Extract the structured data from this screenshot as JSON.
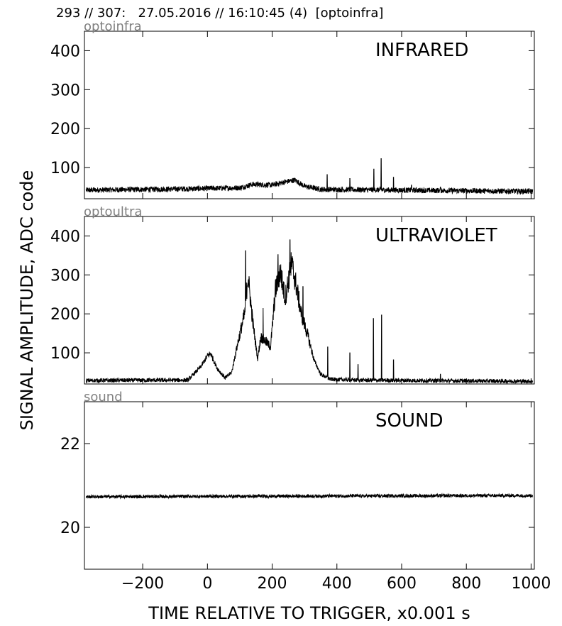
{
  "header": "293 // 307:   27.05.2016 // 16:10:45 (4)  [optoinfra]",
  "chart_data": {
    "type": "line",
    "ylabel": "SIGNAL AMPLITUDE,  ADC code",
    "xlabel": "TIME RELATIVE TO TRIGGER,   x0.001 s",
    "xlim": [
      -380,
      1010
    ],
    "x_ticks": [
      -200,
      0,
      200,
      400,
      600,
      800,
      1000
    ],
    "x_tick_labels": [
      "−200",
      "0",
      "200",
      "400",
      "600",
      "800",
      "1000"
    ],
    "panels": [
      {
        "source_label": "optoinfra",
        "title": "INFRARED",
        "ylim": [
          20,
          450
        ],
        "y_ticks": [
          100,
          200,
          300,
          400
        ],
        "y_tick_labels": [
          "100",
          "200",
          "300",
          "400"
        ],
        "baseline": [
          [
            -380,
            42
          ],
          [
            -100,
            45
          ],
          [
            100,
            48
          ],
          [
            140,
            57
          ],
          [
            200,
            55
          ],
          [
            240,
            63
          ],
          [
            270,
            68
          ],
          [
            300,
            52
          ],
          [
            350,
            44
          ],
          [
            600,
            42
          ],
          [
            1000,
            39
          ]
        ],
        "noise": 7,
        "spikes": [
          [
            370,
            82
          ],
          [
            440,
            72
          ],
          [
            514,
            96
          ],
          [
            537,
            123
          ],
          [
            575,
            75
          ],
          [
            630,
            55
          ],
          [
            720,
            50
          ]
        ]
      },
      {
        "source_label": "optoultra",
        "title": "ULTRAVIOLET",
        "ylim": [
          20,
          450
        ],
        "y_ticks": [
          100,
          200,
          300,
          400
        ],
        "y_tick_labels": [
          "100",
          "200",
          "300",
          "400"
        ],
        "baseline": [
          [
            -380,
            29
          ],
          [
            -60,
            30
          ],
          [
            -20,
            65
          ],
          [
            0,
            92
          ],
          [
            10,
            98
          ],
          [
            30,
            60
          ],
          [
            55,
            35
          ],
          [
            75,
            50
          ],
          [
            95,
            130
          ],
          [
            115,
            200
          ],
          [
            125,
            300
          ],
          [
            140,
            180
          ],
          [
            155,
            85
          ],
          [
            165,
            140
          ],
          [
            180,
            130
          ],
          [
            195,
            115
          ],
          [
            210,
            260
          ],
          [
            225,
            310
          ],
          [
            240,
            240
          ],
          [
            260,
            330
          ],
          [
            275,
            270
          ],
          [
            290,
            200
          ],
          [
            310,
            145
          ],
          [
            330,
            80
          ],
          [
            350,
            45
          ],
          [
            380,
            32
          ],
          [
            450,
            30
          ],
          [
            1000,
            27
          ]
        ],
        "noise": 15,
        "spikes": [
          [
            118,
            362
          ],
          [
            172,
            215
          ],
          [
            218,
            352
          ],
          [
            255,
            390
          ],
          [
            295,
            270
          ],
          [
            372,
            115
          ],
          [
            440,
            100
          ],
          [
            465,
            70
          ],
          [
            513,
            188
          ],
          [
            538,
            197
          ],
          [
            575,
            82
          ],
          [
            720,
            45
          ]
        ]
      },
      {
        "source_label": "sound",
        "title": "SOUND",
        "ylim": [
          19.0,
          23.0
        ],
        "y_ticks": [
          20,
          22
        ],
        "y_tick_labels": [
          "20",
          "22"
        ],
        "baseline": [
          [
            -380,
            20.73
          ],
          [
            0,
            20.74
          ],
          [
            500,
            20.75
          ],
          [
            1000,
            20.76
          ]
        ],
        "noise": 0.04,
        "spikes": []
      }
    ]
  }
}
